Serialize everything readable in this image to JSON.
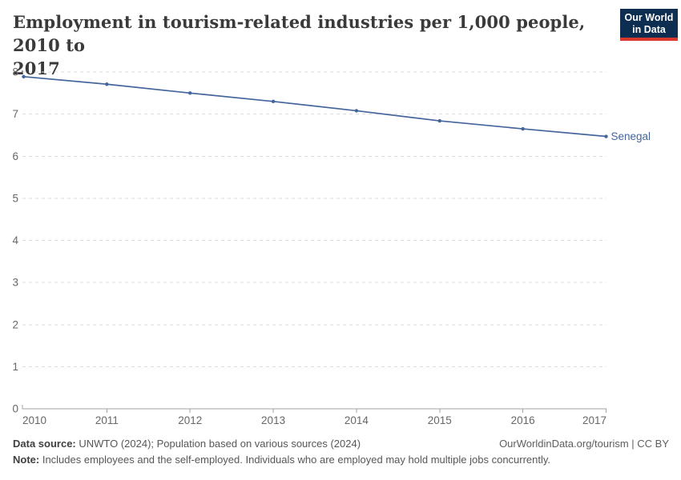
{
  "header": {
    "title_line1": "Employment in tourism-related industries per 1,000 people, 2010 to",
    "title_line2": "2017",
    "logo": {
      "line1": "Our World",
      "line2": "in Data"
    }
  },
  "chart_data": {
    "type": "line",
    "title": "Employment in tourism-related industries per 1,000 people, 2010 to 2017",
    "x": [
      2010,
      2011,
      2012,
      2013,
      2014,
      2015,
      2016,
      2017
    ],
    "series": [
      {
        "name": "Senegal",
        "values": [
          7.89,
          7.71,
          7.5,
          7.3,
          7.08,
          6.84,
          6.65,
          6.47
        ],
        "color": "#44659c"
      }
    ],
    "xlabel": "",
    "ylabel": "",
    "ylim": [
      0,
      8
    ],
    "yticks": [
      0,
      1,
      2,
      3,
      4,
      5,
      6,
      7,
      8
    ],
    "grid": "horizontal-dashed",
    "legend_position": "end-of-line-label"
  },
  "footer": {
    "source_label": "Data source:",
    "source_text": " UNWTO (2024); Population based on various sources (2024)",
    "link_text": "OurWorldinData.org/tourism | CC BY",
    "note_label": "Note:",
    "note_text": " Includes employees and the self-employed. Individuals who are employed may hold multiple jobs concurrently."
  },
  "colors": {
    "series_blue": "#44659c",
    "logo_navy": "#0d2e51",
    "logo_red": "#d8392c",
    "gridline": "#dcdcdc",
    "axis": "#a3a3a3",
    "tick_label": "#676767",
    "title_text": "#3a3a3a"
  }
}
